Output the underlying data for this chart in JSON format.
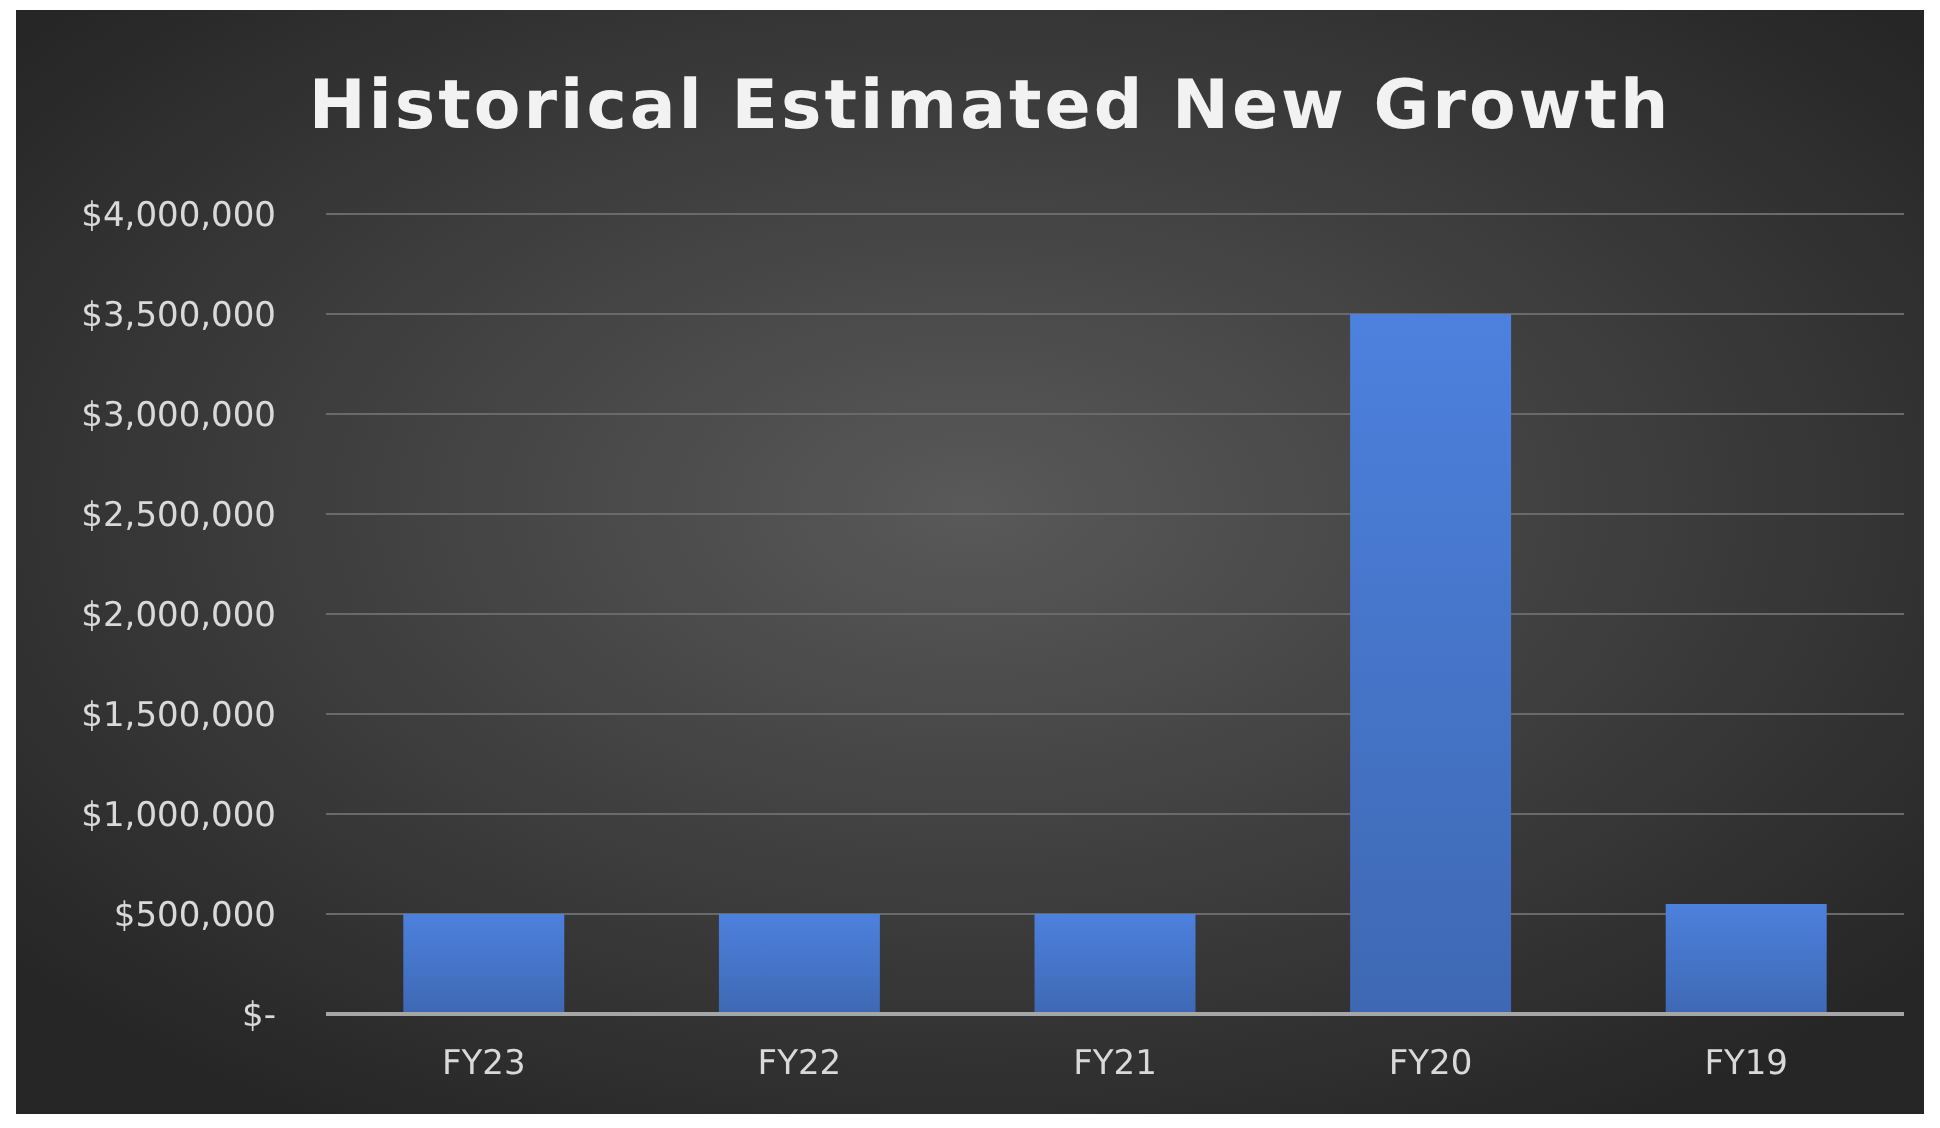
{
  "chart_data": {
    "type": "bar",
    "title": "Historical Estimated New Growth",
    "categories": [
      "FY23",
      "FY22",
      "FY21",
      "FY20",
      "FY19"
    ],
    "values": [
      500000,
      500000,
      500000,
      3500000,
      550000
    ],
    "color": "#4472c4",
    "ylim": [
      0,
      4000000
    ],
    "yticks": [
      {
        "value": 0,
        "label": "$-"
      },
      {
        "value": 500000,
        "label": "$500,000"
      },
      {
        "value": 1000000,
        "label": "$1,000,000"
      },
      {
        "value": 1500000,
        "label": "$1,500,000"
      },
      {
        "value": 2000000,
        "label": "$2,000,000"
      },
      {
        "value": 2500000,
        "label": "$2,500,000"
      },
      {
        "value": 3000000,
        "label": "$3,000,000"
      },
      {
        "value": 3500000,
        "label": "$3,500,000"
      },
      {
        "value": 4000000,
        "label": "$4,000,000"
      }
    ],
    "grid": "y"
  }
}
